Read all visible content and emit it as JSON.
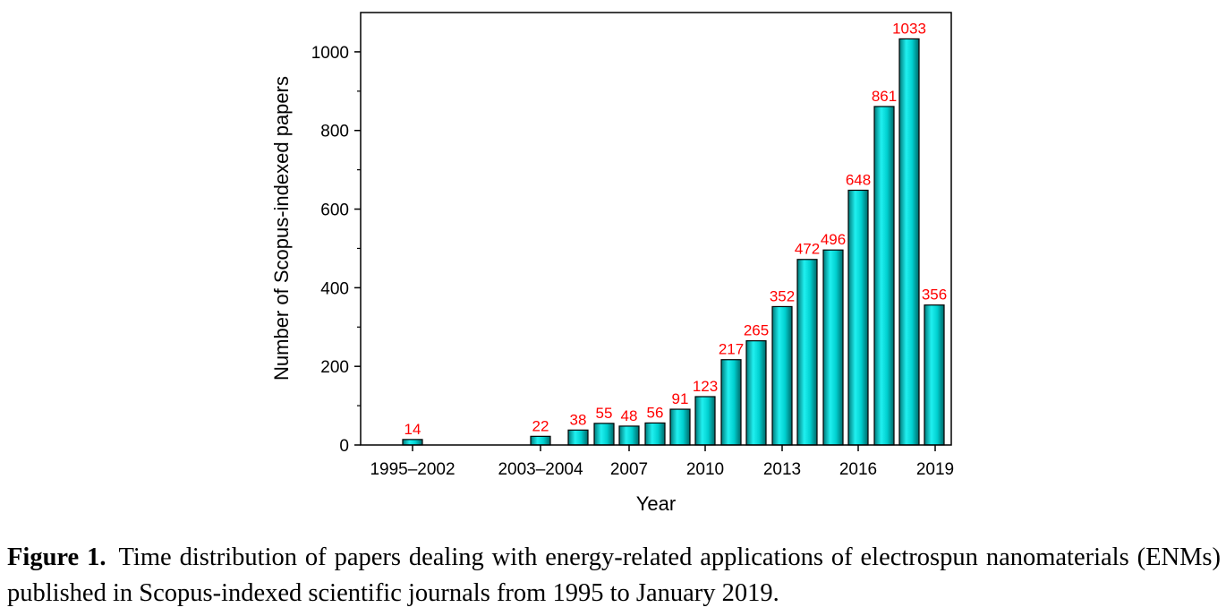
{
  "chart_data": {
    "type": "bar",
    "xlabel": "Year",
    "ylabel": "Number of Scopus-indexed papers",
    "ylim": [
      0,
      1100
    ],
    "yticks": [
      0,
      200,
      400,
      600,
      800,
      1000
    ],
    "x_tick_labels": [
      "1995–2002",
      "2003–2004",
      "2007",
      "2010",
      "2013",
      "2016",
      "2019"
    ],
    "bar_color": "#00d8d8",
    "label_color": "#ff0000",
    "values": [
      14,
      22,
      38,
      55,
      48,
      56,
      91,
      123,
      217,
      265,
      352,
      472,
      496,
      648,
      861,
      1033,
      356
    ],
    "data_labels": [
      "14",
      "22",
      "38",
      "55",
      "48",
      "56",
      "91",
      "123",
      "217",
      "265",
      "352",
      "472",
      "496",
      "648",
      "861",
      "1033",
      "356"
    ]
  },
  "caption": {
    "label": "Figure 1.",
    "text": "Time distribution of papers dealing with energy-related applications of electrospun nanomaterials (ENMs) published in Scopus-indexed scientific journals from 1995 to January 2019."
  }
}
